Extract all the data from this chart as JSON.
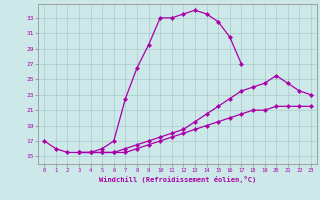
{
  "xlabel": "Windchill (Refroidissement éolien,°C)",
  "bg_color": "#cce8e8",
  "line_color": "#aa00aa",
  "grid_color": "#aacccc",
  "xlim": [
    -0.5,
    23.5
  ],
  "ylim": [
    14.0,
    34.8
  ],
  "xticks": [
    0,
    1,
    2,
    3,
    4,
    5,
    6,
    7,
    8,
    9,
    10,
    11,
    12,
    13,
    14,
    15,
    16,
    17,
    18,
    19,
    20,
    21,
    22,
    23
  ],
  "yticks": [
    15,
    17,
    19,
    21,
    23,
    25,
    27,
    29,
    31,
    33
  ],
  "curve1_x": [
    0,
    1,
    2,
    3,
    4,
    5,
    6,
    7,
    8,
    9,
    10,
    11,
    12,
    13,
    14,
    15,
    16,
    17
  ],
  "curve1_y": [
    17.0,
    16.0,
    15.5,
    15.5,
    15.5,
    16.0,
    17.0,
    22.5,
    26.5,
    29.5,
    33.0,
    33.0,
    33.5,
    34.0,
    33.5,
    32.5,
    30.5,
    27.0
  ],
  "curve2_x": [
    3,
    4,
    5,
    6,
    7,
    8,
    9,
    10,
    11,
    12,
    13,
    14,
    15,
    16,
    17,
    18,
    19,
    20,
    21,
    22,
    23
  ],
  "curve2_y": [
    15.5,
    15.5,
    15.5,
    15.5,
    16.0,
    16.5,
    17.0,
    17.5,
    18.0,
    18.5,
    19.5,
    20.5,
    21.5,
    22.5,
    23.5,
    24.0,
    24.5,
    25.5,
    24.5,
    23.5,
    23.0
  ],
  "curve3_x": [
    3,
    4,
    5,
    6,
    7,
    8,
    9,
    10,
    11,
    12,
    13,
    14,
    15,
    16,
    17,
    18,
    19,
    20,
    21,
    22,
    23
  ],
  "curve3_y": [
    15.5,
    15.5,
    15.5,
    15.5,
    15.5,
    16.0,
    16.5,
    17.0,
    17.5,
    18.0,
    18.5,
    19.0,
    19.5,
    20.0,
    20.5,
    21.0,
    21.0,
    21.5,
    21.5,
    21.5,
    21.5
  ]
}
